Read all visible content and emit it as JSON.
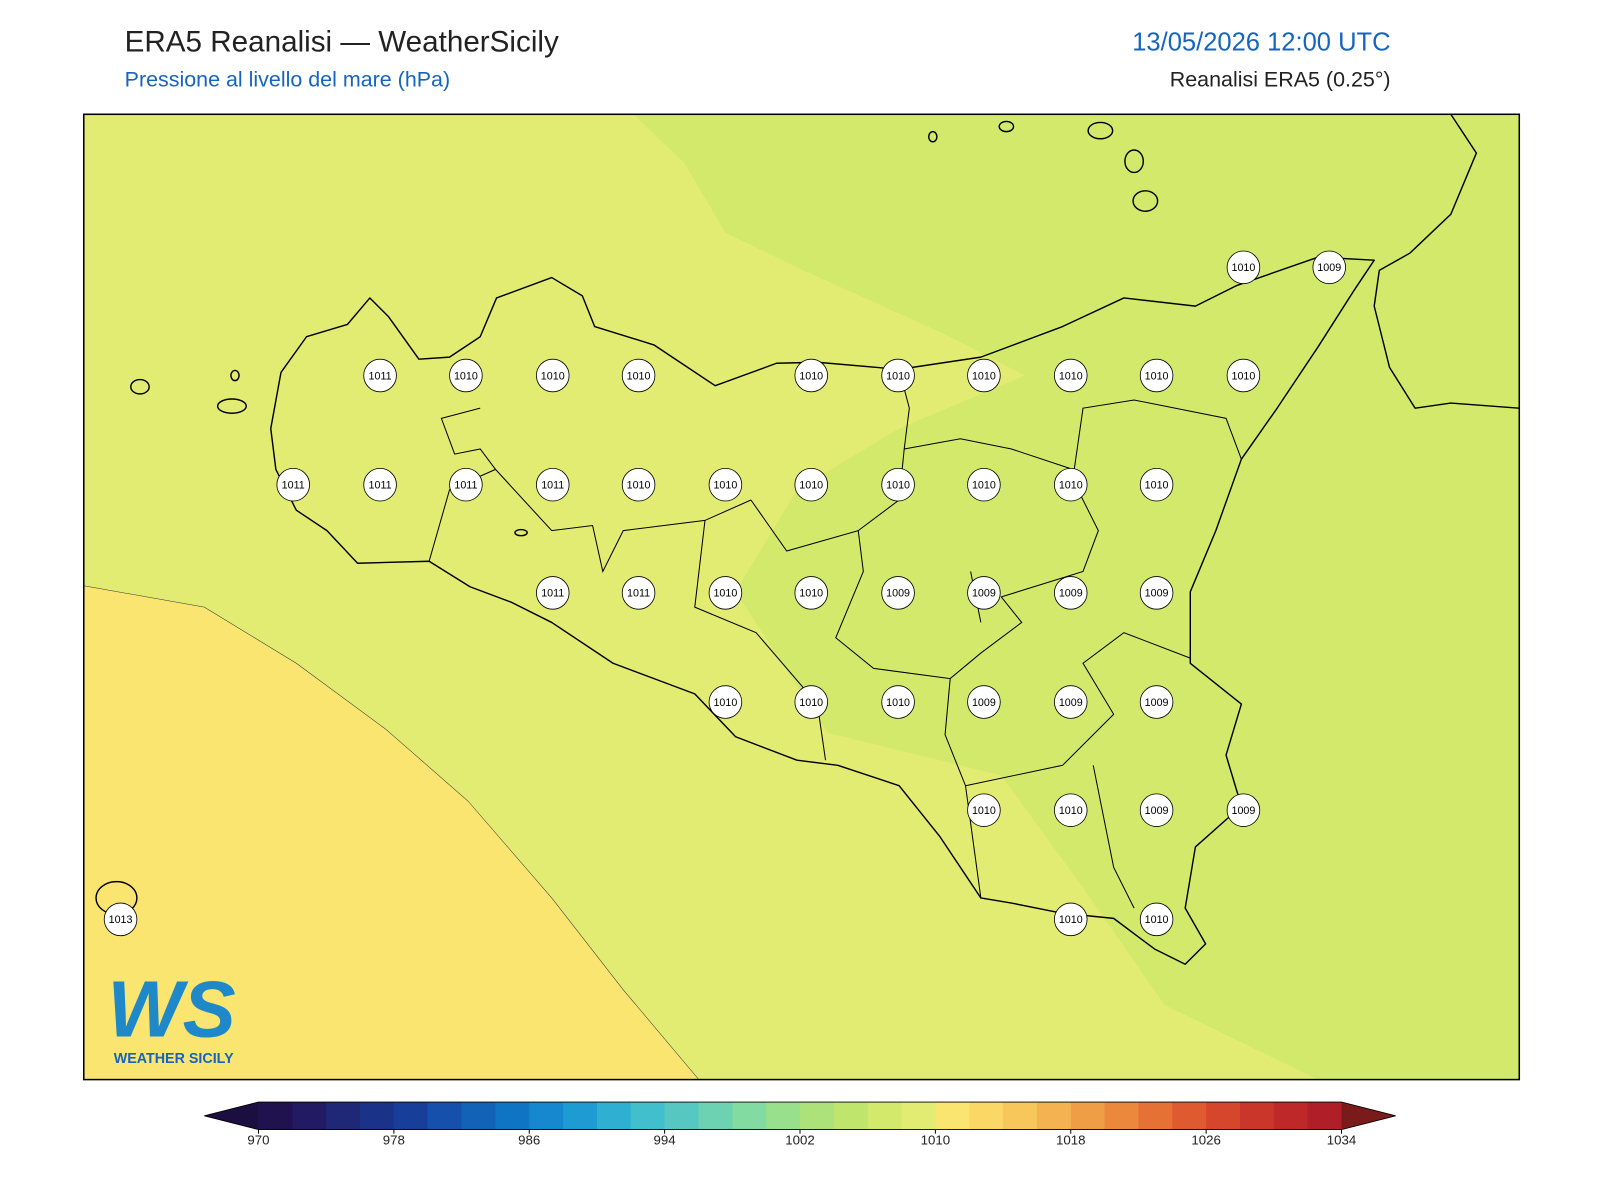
{
  "header": {
    "title": "ERA5 Reanalisi — WeatherSicily",
    "subtitle": "Pressione al livello del mare (hPa)",
    "datetime": "13/05/2026 12:00 UTC",
    "source": "Reanalisi ERA5 (0.25°)"
  },
  "map": {
    "stations": [
      1010,
      1009,
      1011,
      1010,
      1010,
      1010,
      1010,
      1010,
      1010,
      1010,
      1010,
      1010,
      1011,
      1011,
      1011,
      1011,
      1010,
      1010,
      1010,
      1010,
      1010,
      1010,
      1010,
      1011,
      1011,
      1010,
      1010,
      1009,
      1009,
      1009,
      1009,
      1010,
      1010,
      1010,
      1009,
      1009,
      1009,
      1010,
      1010,
      1009,
      1009,
      1013,
      1010,
      1010
    ]
  },
  "colorbar": {
    "ticks": [
      970,
      978,
      986,
      994,
      1002,
      1010,
      1018,
      1026,
      1034
    ],
    "colors": [
      "#20114f",
      "#221a62",
      "#1f2777",
      "#1b3289",
      "#173f9a",
      "#1450ac",
      "#1263b8",
      "#0f74c4",
      "#1588cf",
      "#1f9bd3",
      "#2fb0d2",
      "#42bfcc",
      "#57c8c1",
      "#6cd2b1",
      "#82dba0",
      "#98e08c",
      "#ade27b",
      "#c0e56d",
      "#d3e96b",
      "#e2ec72",
      "#fbe571",
      "#fbd865",
      "#f8c75b",
      "#f4b350",
      "#f09e45",
      "#ec883c",
      "#e67135",
      "#df5a2f",
      "#d6462c",
      "#cb362a",
      "#bf2828",
      "#b01f27"
    ],
    "under": "#1a0f40",
    "over": "#7a1a1a"
  },
  "logo": {
    "letters": "WS",
    "name": "WEATHER SICILY"
  }
}
